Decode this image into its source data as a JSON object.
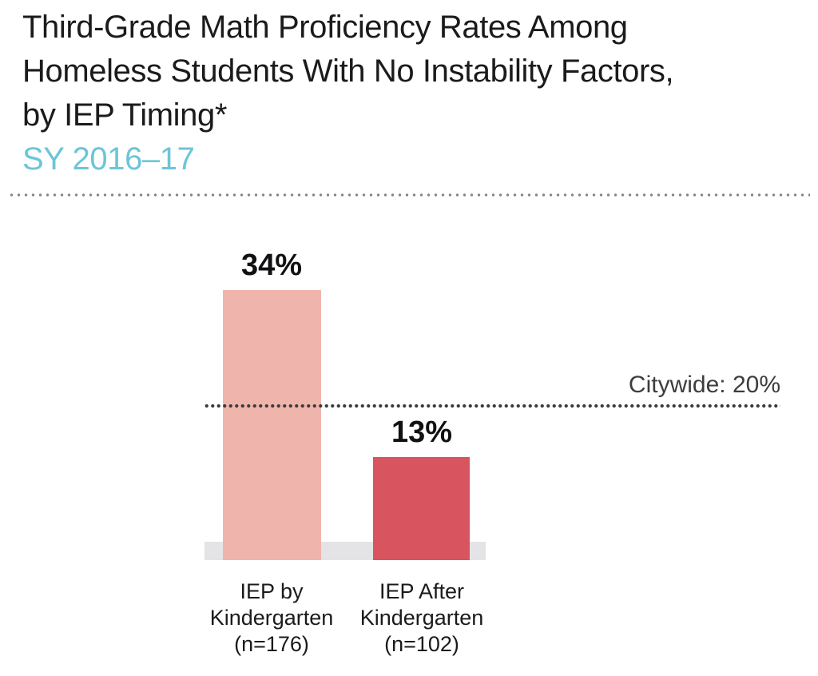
{
  "header": {
    "title_lines": [
      "Third-Grade Math Proficiency Rates Among",
      "Homeless Students With No Instability Factors,",
      "by IEP Timing*"
    ],
    "subtitle": "SY 2016–17"
  },
  "chart_data": {
    "type": "bar",
    "title": "Third-Grade Math Proficiency Rates Among Homeless Students With No Instability Factors, by IEP Timing*",
    "subtitle": "SY 2016–17",
    "categories": [
      "IEP by Kindergarten (n=176)",
      "IEP After Kindergarten (n=102)"
    ],
    "values": [
      34,
      13
    ],
    "unit": "%",
    "bars": [
      {
        "label_lines": [
          "IEP by",
          "Kindergarten",
          "(n=176)"
        ],
        "value": 34,
        "value_label": "34%",
        "n": 176,
        "color": "#efb4ab"
      },
      {
        "label_lines": [
          "IEP After",
          "Kindergarten",
          "(n=102)"
        ],
        "value": 13,
        "value_label": "13%",
        "n": 102,
        "color": "#d8545f"
      }
    ],
    "reference_line": {
      "label": "Citywide: 20%",
      "value": 20,
      "style": "dotted"
    },
    "xlabel": "",
    "ylabel": "",
    "ylim": [
      0,
      40
    ],
    "grid": false,
    "legend": false
  },
  "colors": {
    "title_text": "#1b1b1d",
    "subtitle_text": "#6cc5d8",
    "bar_light_pink": "#efb4ab",
    "bar_crimson": "#d8545f",
    "baseline_band": "#e4e4e6",
    "separator_dots": "#858585",
    "reference_dots": "#3a3a3a",
    "reference_text": "#3d3d3d",
    "value_label_text": "#111113"
  }
}
